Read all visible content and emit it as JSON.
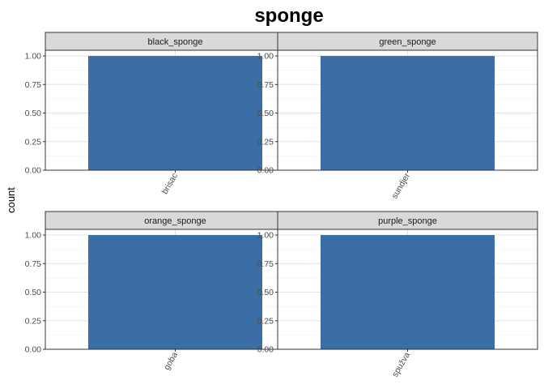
{
  "chart_data": {
    "type": "bar",
    "title": "sponge",
    "xlabel": "",
    "ylabel": "count",
    "ylim": [
      0,
      1.05
    ],
    "yticks": [
      "0.00",
      "0.25",
      "0.50",
      "0.75",
      "1.00"
    ],
    "grid": true,
    "layout": "facet-wrap 2x2, free x scales",
    "bar_color": "#3a6ea5",
    "facets": [
      {
        "label": "black_sponge",
        "categories": [
          "brisac"
        ],
        "values": [
          1
        ]
      },
      {
        "label": "green_sponge",
        "categories": [
          "sundjer"
        ],
        "values": [
          1
        ]
      },
      {
        "label": "orange_sponge",
        "categories": [
          "goba"
        ],
        "values": [
          1
        ]
      },
      {
        "label": "purple_sponge",
        "categories": [
          "spužva"
        ],
        "values": [
          1
        ]
      }
    ]
  }
}
